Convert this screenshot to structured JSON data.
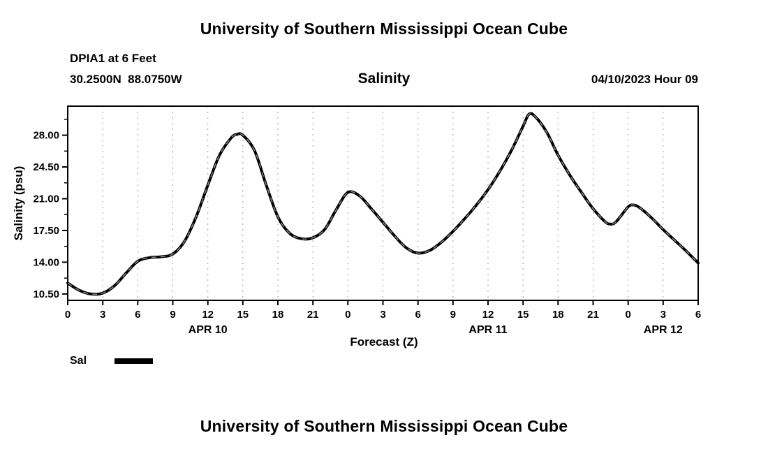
{
  "header": {
    "title": "University of Southern Mississippi Ocean Cube",
    "station": "DPIA1 at 6 Feet",
    "coords": "30.2500N  88.0750W",
    "chart_title": "Salinity",
    "run_time": "04/10/2023 Hour 09"
  },
  "footer": {
    "title": "University of Southern Mississippi Ocean Cube"
  },
  "legend": {
    "label": "Sal",
    "color": "#000000"
  },
  "chart_data": {
    "type": "line",
    "title": "Salinity",
    "xlabel": "Forecast (Z)",
    "ylabel": "Salinity (psu)",
    "xlim": [
      0,
      54
    ],
    "ylim": [
      9.8,
      31.2
    ],
    "grid": "vertical-dashed",
    "legend_position": "bottom-left",
    "yticks": [
      10.5,
      14.0,
      17.5,
      21.0,
      24.5,
      28.0
    ],
    "ytick_labels": [
      "10.50",
      "14.00",
      "17.50",
      "21.00",
      "24.50",
      "28.00"
    ],
    "xticks": [
      0,
      3,
      6,
      9,
      12,
      15,
      18,
      21,
      24,
      27,
      30,
      33,
      36,
      39,
      42,
      45,
      48,
      51,
      54
    ],
    "xtick_labels": [
      "0",
      "3",
      "6",
      "9",
      "12",
      "15",
      "18",
      "21",
      "0",
      "3",
      "6",
      "9",
      "12",
      "15",
      "18",
      "21",
      "0",
      "3",
      "6"
    ],
    "day_labels": [
      {
        "label": "APR 10",
        "hour": 12
      },
      {
        "label": "APR 11",
        "hour": 36
      },
      {
        "label": "APR 12",
        "hour": 51
      }
    ],
    "series": [
      {
        "name": "Sal",
        "color": "#000000",
        "x": [
          0,
          1,
          2,
          3,
          4,
          5,
          6,
          7,
          8,
          9,
          10,
          11,
          12,
          13,
          14,
          14.5,
          15,
          16,
          17,
          18,
          19,
          20,
          21,
          22,
          23,
          24,
          25,
          26,
          27,
          28,
          29,
          30,
          31,
          32,
          33,
          34,
          35,
          36,
          37,
          38,
          39,
          39.5,
          40,
          41,
          42,
          43,
          44,
          45,
          46,
          46.5,
          47,
          48,
          48.5,
          49,
          50,
          51,
          52,
          53,
          54
        ],
        "y": [
          11.7,
          10.9,
          10.5,
          10.6,
          11.4,
          12.8,
          14.1,
          14.5,
          14.6,
          14.9,
          16.3,
          19.0,
          22.5,
          25.8,
          27.7,
          28.1,
          28.0,
          26.3,
          22.5,
          19.0,
          17.2,
          16.6,
          16.7,
          17.6,
          19.8,
          21.7,
          21.3,
          19.9,
          18.4,
          16.9,
          15.6,
          15.0,
          15.3,
          16.2,
          17.4,
          18.8,
          20.3,
          22.0,
          24.0,
          26.3,
          29.0,
          30.3,
          30.1,
          28.4,
          25.8,
          23.6,
          21.7,
          19.9,
          18.5,
          18.2,
          18.5,
          20.1,
          20.3,
          20.0,
          18.9,
          17.6,
          16.4,
          15.2,
          13.9
        ]
      }
    ]
  }
}
